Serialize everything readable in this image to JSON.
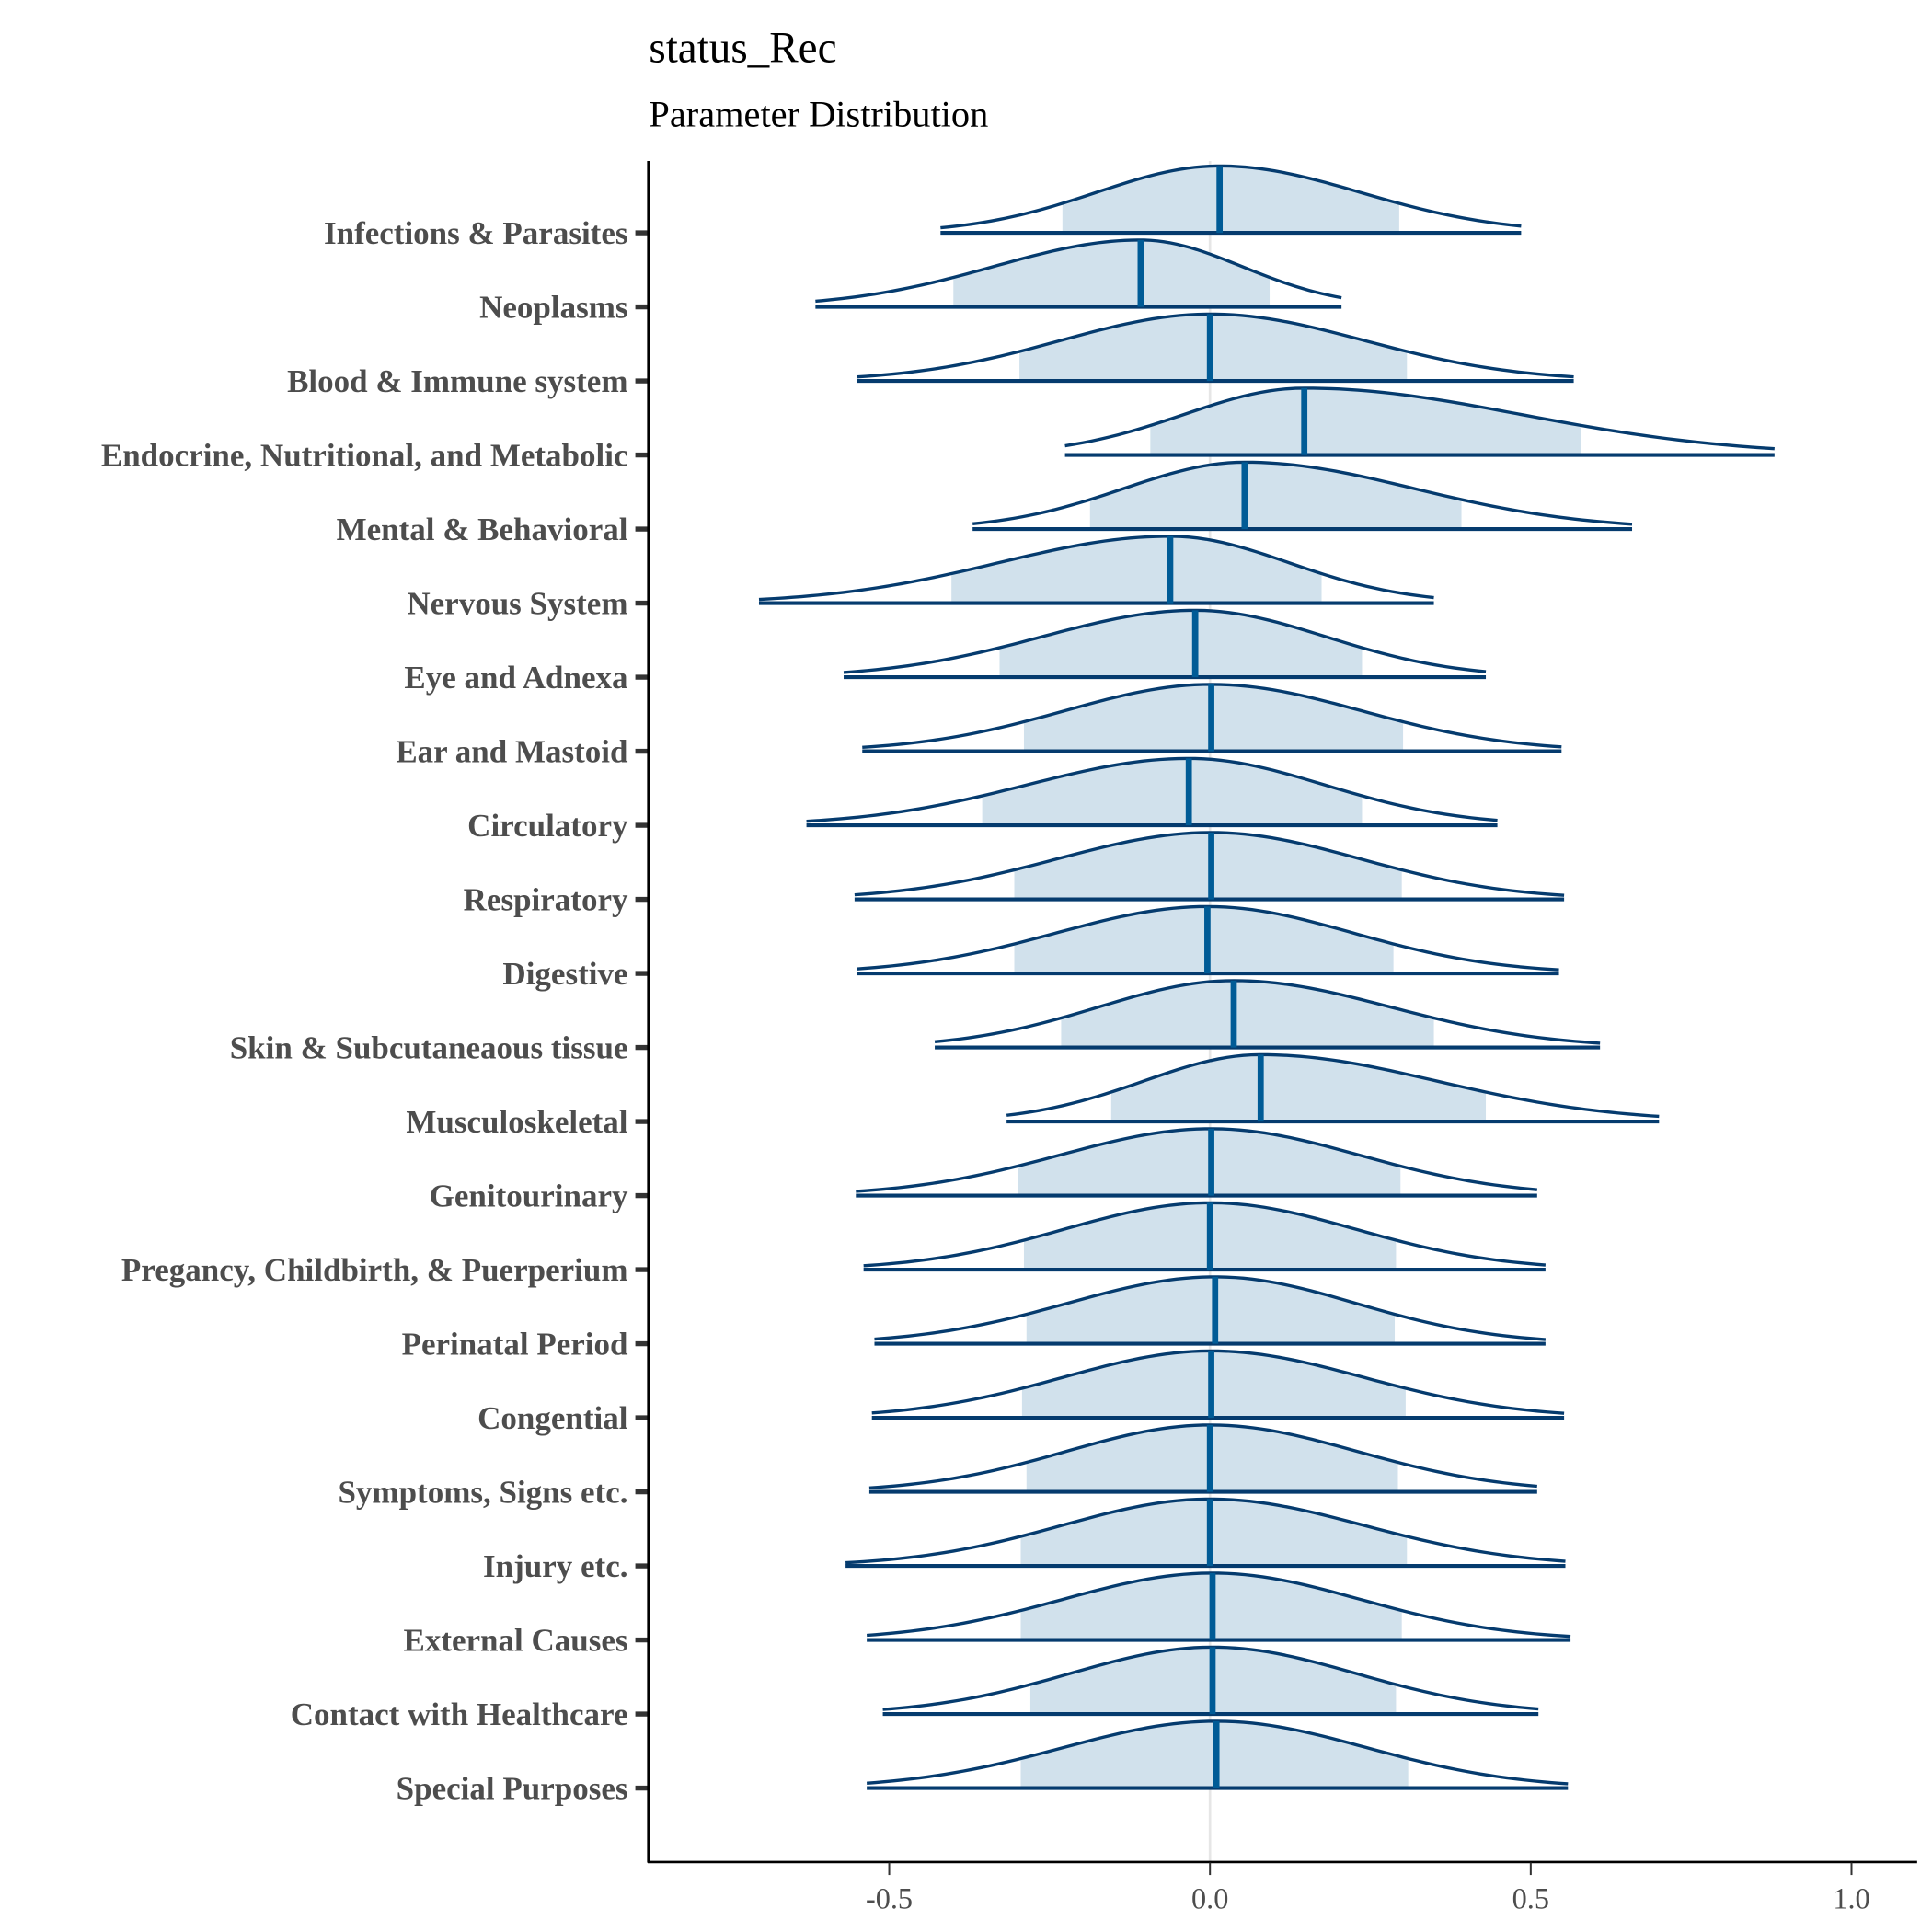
{
  "chart_data": {
    "type": "ridgeline",
    "title": "status_Rec",
    "subtitle": "Parameter Distribution",
    "xlabel": "",
    "ylabel": "",
    "xlim": [
      -0.87,
      1.1
    ],
    "x_ticks": [
      "-0.5",
      "0.0",
      "0.5",
      "1.0"
    ],
    "x_tick_values": [
      -0.5,
      0.0,
      0.5,
      1.0
    ],
    "grid": "vertical line at 0",
    "colors": {
      "fill": "#d1e1ec",
      "outline": "#053b6e",
      "median": "#005b96",
      "zero_line": "#e6e6e6"
    },
    "categories": [
      "Infections & Parasites",
      "Neoplasms",
      "Blood & Immune system",
      "Endocrine, Nutritional, and Metabolic",
      "Mental & Behavioral",
      "Nervous System",
      "Eye and Adnexa",
      "Ear and Mastoid",
      "Circulatory",
      "Respiratory",
      "Digestive",
      "Skin & Subcutaneaous tissue",
      "Musculoskeletal",
      "Genitourinary",
      "Pregancy, Childbirth, & Puerperium",
      "Perinatal Period",
      "Congential",
      "Symptoms, Signs etc.",
      "Injury etc.",
      "External Causes",
      "Contact with Healthcare",
      "Special Purposes"
    ],
    "median": [
      0.015,
      -0.108,
      0.0,
      0.147,
      0.054,
      -0.062,
      -0.023,
      0.002,
      -0.033,
      0.002,
      -0.004,
      0.037,
      0.079,
      0.002,
      0.0,
      0.008,
      0.002,
      0.0,
      0.0,
      0.004,
      0.004,
      0.01
    ],
    "inner_low": [
      -0.23,
      -0.4,
      -0.297,
      -0.093,
      -0.187,
      -0.403,
      -0.328,
      -0.29,
      -0.355,
      -0.305,
      -0.305,
      -0.232,
      -0.154,
      -0.3,
      -0.29,
      -0.286,
      -0.293,
      -0.286,
      -0.295,
      -0.295,
      -0.28,
      -0.295
    ],
    "inner_high": [
      0.295,
      0.093,
      0.307,
      0.579,
      0.392,
      0.174,
      0.237,
      0.301,
      0.237,
      0.299,
      0.286,
      0.349,
      0.43,
      0.297,
      0.29,
      0.288,
      0.305,
      0.293,
      0.307,
      0.299,
      0.29,
      0.309
    ],
    "min": [
      -0.42,
      -0.615,
      -0.55,
      -0.226,
      -0.37,
      -0.703,
      -0.571,
      -0.542,
      -0.629,
      -0.554,
      -0.55,
      -0.429,
      -0.317,
      -0.552,
      -0.54,
      -0.523,
      -0.527,
      -0.531,
      -0.568,
      -0.535,
      -0.51,
      -0.535
    ],
    "max": [
      0.485,
      0.205,
      0.567,
      0.88,
      0.658,
      0.349,
      0.43,
      0.548,
      0.448,
      0.552,
      0.544,
      0.608,
      0.7,
      0.51,
      0.523,
      0.523,
      0.552,
      0.51,
      0.554,
      0.562,
      0.512,
      0.558
    ]
  }
}
